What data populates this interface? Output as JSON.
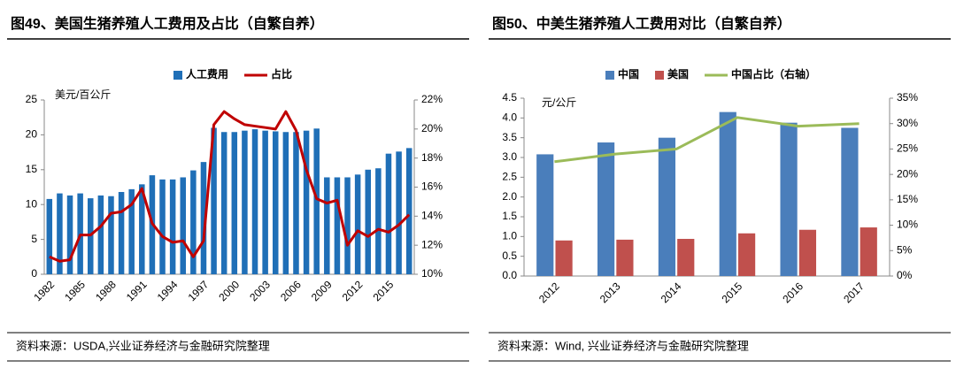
{
  "chart_data": [
    {
      "type": "bar",
      "title": "图49、美国生猪养殖人工费用及占比（自繁自养）",
      "source": "资料来源：USDA,兴业证券经济与金融研究院整理",
      "y_label": "美元/百公斤",
      "categories": [
        "1982",
        null,
        null,
        "1985",
        null,
        null,
        "1988",
        null,
        null,
        "1991",
        null,
        null,
        "1994",
        null,
        null,
        "1997",
        null,
        null,
        "2000",
        null,
        null,
        "2003",
        null,
        null,
        "2006",
        null,
        null,
        "2009",
        null,
        null,
        "2012",
        null,
        null,
        "2015",
        null,
        null
      ],
      "series": [
        {
          "name": "人工费用",
          "type": "bar",
          "color": "#1f6fb7",
          "values": [
            10.8,
            11.6,
            11.3,
            11.6,
            10.9,
            11.3,
            11.2,
            11.8,
            12.2,
            12.9,
            14.2,
            13.6,
            13.6,
            13.9,
            14.9,
            16.1,
            21.0,
            20.4,
            20.4,
            20.6,
            20.8,
            20.6,
            20.5,
            20.4,
            20.4,
            20.6,
            20.9,
            13.9,
            13.9,
            13.9,
            14.3,
            15.0,
            15.2,
            17.3,
            17.6,
            18.1
          ]
        },
        {
          "name": "占比",
          "type": "line",
          "axis": "y2",
          "color": "#c00000",
          "values": [
            11.2,
            10.9,
            11.0,
            12.7,
            12.7,
            13.3,
            14.2,
            14.3,
            14.8,
            15.9,
            13.5,
            12.6,
            12.2,
            12.3,
            11.2,
            12.3,
            20.3,
            21.2,
            20.7,
            20.3,
            20.2,
            20.1,
            20.0,
            21.2,
            19.9,
            17.2,
            15.2,
            14.9,
            15.1,
            12.0,
            13.0,
            12.6,
            13.1,
            12.9,
            13.4,
            14.1
          ]
        }
      ],
      "ylim": [
        0,
        25
      ],
      "yticks": [
        0,
        5,
        10,
        15,
        20,
        25
      ],
      "y2lim": [
        10,
        22
      ],
      "y2ticks": [
        {
          "value": 10,
          "label": "10%"
        },
        {
          "value": 12,
          "label": "12%"
        },
        {
          "value": 14,
          "label": "14%"
        },
        {
          "value": 16,
          "label": "16%"
        },
        {
          "value": 18,
          "label": "18%"
        },
        {
          "value": 20,
          "label": "20%"
        },
        {
          "value": 22,
          "label": "22%"
        }
      ],
      "grid": false,
      "legend": "top"
    },
    {
      "type": "bar",
      "title": "图50、中美生猪养殖人工费用对比（自繁自养）",
      "source": "资料来源：Wind, 兴业证券经济与金融研究院整理",
      "y_label": "元/公斤",
      "categories": [
        "2012",
        "2013",
        "2014",
        "2015",
        "2016",
        "2017"
      ],
      "series": [
        {
          "name": "中国",
          "type": "bar",
          "color": "#4a7ebb",
          "values": [
            3.08,
            3.38,
            3.5,
            4.15,
            3.88,
            3.75
          ]
        },
        {
          "name": "美国",
          "type": "bar",
          "color": "#c0504d",
          "values": [
            0.9,
            0.92,
            0.94,
            1.08,
            1.17,
            1.23
          ]
        },
        {
          "name": "中国占比（右轴）",
          "type": "line",
          "axis": "y2",
          "color": "#9bbb59",
          "values": [
            22.5,
            24.0,
            25.0,
            31.2,
            29.5,
            30.0
          ]
        }
      ],
      "ylim": [
        0,
        4.5
      ],
      "yticks": [
        {
          "value": 0,
          "label": "0.0"
        },
        {
          "value": 0.5,
          "label": "0.5"
        },
        {
          "value": 1,
          "label": "1.0"
        },
        {
          "value": 1.5,
          "label": "1.5"
        },
        {
          "value": 2,
          "label": "2.0"
        },
        {
          "value": 2.5,
          "label": "2.5"
        },
        {
          "value": 3,
          "label": "3.0"
        },
        {
          "value": 3.5,
          "label": "3.5"
        },
        {
          "value": 4,
          "label": "4.0"
        },
        {
          "value": 4.5,
          "label": "4.5"
        }
      ],
      "y2lim": [
        0,
        35
      ],
      "y2ticks": [
        {
          "value": 0,
          "label": "0%"
        },
        {
          "value": 5,
          "label": "5%"
        },
        {
          "value": 10,
          "label": "10%"
        },
        {
          "value": 15,
          "label": "15%"
        },
        {
          "value": 20,
          "label": "20%"
        },
        {
          "value": 25,
          "label": "25%"
        },
        {
          "value": 30,
          "label": "30%"
        },
        {
          "value": 35,
          "label": "35%"
        }
      ],
      "grid": false,
      "legend": "top"
    }
  ]
}
